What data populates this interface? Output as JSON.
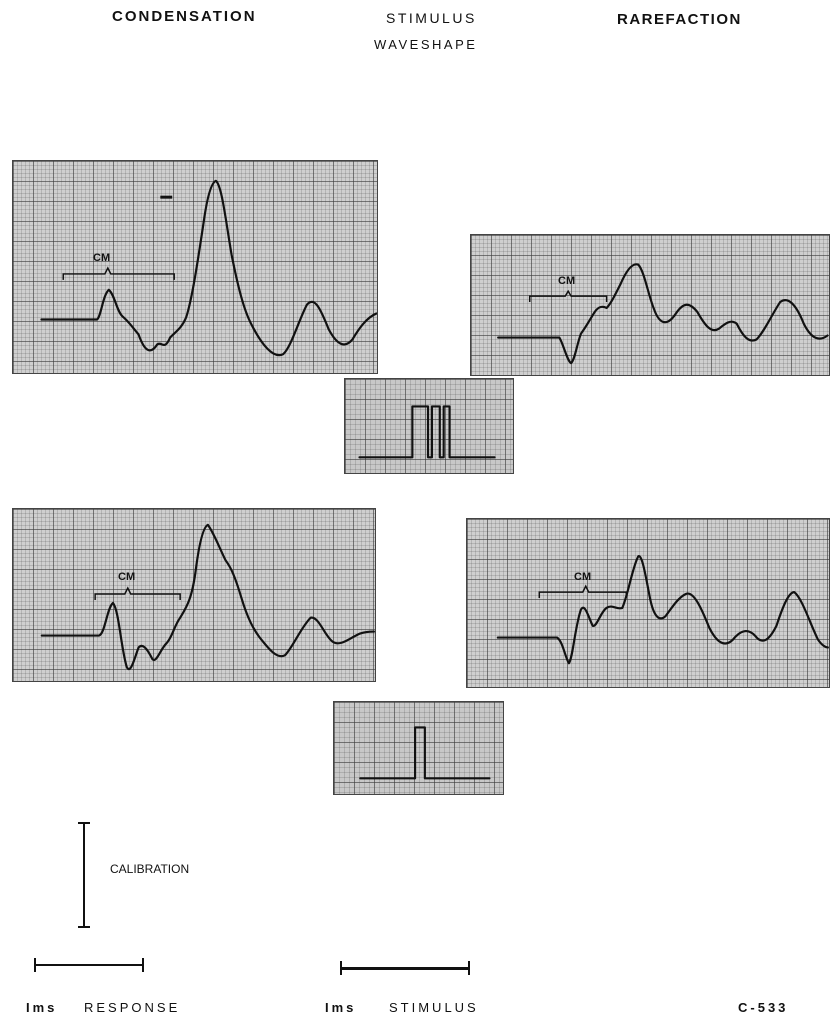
{
  "headers": {
    "condensation": "CONDENSATION",
    "stimulus_line1": "STIMULUS",
    "stimulus_line2": "WAVESHAPE",
    "rarefaction": "RAREFACTION"
  },
  "trace_label": "CM",
  "calibration_label": "CALIBRATION",
  "response_scale": {
    "value": "Ims",
    "label": "RESPONSE"
  },
  "stimulus_scale": {
    "value": "Ims",
    "label": "STIMULUS"
  },
  "figure_id": "C-533"
}
